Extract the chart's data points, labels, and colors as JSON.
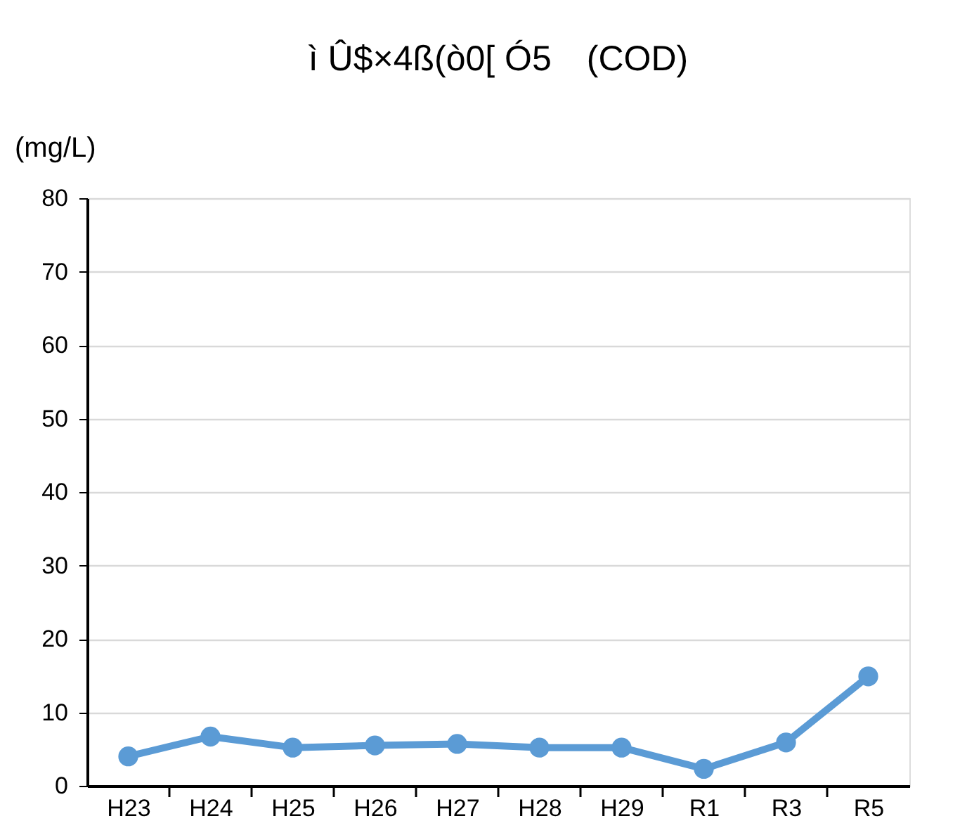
{
  "chart_data": {
    "type": "line",
    "title": "ì Û$×4ß(ò0[ Ó5　(COD)",
    "ylabel": "(mg/L)",
    "categories": [
      "H23",
      "H24",
      "H25",
      "H26",
      "H27",
      "H28",
      "H29",
      "R1",
      "R3",
      "R5"
    ],
    "series": [
      {
        "color": "#5b9bd5",
        "values": [
          4.0,
          6.7,
          5.2,
          5.5,
          5.7,
          5.2,
          5.2,
          2.3,
          5.9,
          14.9
        ]
      }
    ],
    "ylim": [
      0,
      80
    ],
    "yticks": [
      0,
      10,
      20,
      30,
      40,
      50,
      60,
      70,
      80
    ],
    "grid": "y",
    "marker": "circle",
    "line_style": "solid"
  }
}
